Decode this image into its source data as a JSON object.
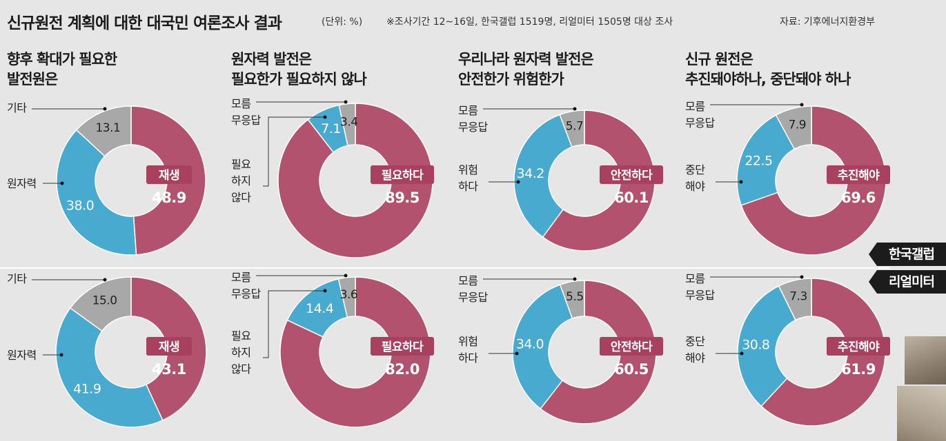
{
  "header": {
    "title": "신규원전 계획에 대한 대국민 여론조사 결과",
    "unit": "(단위: %)",
    "survey_note": "※조사기간 12~16일, 한국갤럽 1519명, 리얼미터 1505명 대상 조사",
    "source": "자료: 기후에너지환경부"
  },
  "questions": [
    {
      "line1": "향후 확대가 필요한",
      "line2": "발전원은"
    },
    {
      "line1": "원자력 발전은",
      "line2": "필요한가 필요하지 않나"
    },
    {
      "line1": "우리나라 원자력 발전은",
      "line2": "안전한가 위험한가"
    },
    {
      "line1": "신규 원전은",
      "line2": "추진돼야하나, 중단돼야 하나"
    }
  ],
  "legend": {
    "gallup": "한국갤럽",
    "realmeter": "리얼미터"
  },
  "colors": {
    "main": "#b3526f",
    "secondary": "#49aacf",
    "other": "#a8a8a8",
    "background": "#e6e6e6"
  },
  "chart_data": [
    {
      "type": "pie",
      "survey": "한국갤럽",
      "question": "향후 확대가 필요한 발전원은",
      "slices": [
        {
          "label": "재생",
          "value": 48.9,
          "value_text": "48.9"
        },
        {
          "label": "원자력",
          "value": 38.0,
          "value_text": "38.0"
        },
        {
          "label": "기타",
          "value": 13.1,
          "value_text": "13.1"
        }
      ]
    },
    {
      "type": "pie",
      "survey": "한국갤럽",
      "question": "원자력 발전은 필요한가 필요하지 않나",
      "slices": [
        {
          "label": "필요하다",
          "value": 89.5,
          "value_text": "89.5"
        },
        {
          "label": "필요 하지 않다",
          "value": 7.1,
          "value_text": "7.1"
        },
        {
          "label": "모름 무응답",
          "value": 3.4,
          "value_text": "3.4"
        }
      ]
    },
    {
      "type": "pie",
      "survey": "한국갤럽",
      "question": "우리나라 원자력 발전은 안전한가 위험한가",
      "slices": [
        {
          "label": "안전하다",
          "value": 60.1,
          "value_text": "60.1"
        },
        {
          "label": "위험 하다",
          "value": 34.2,
          "value_text": "34.2"
        },
        {
          "label": "모름 무응답",
          "value": 5.7,
          "value_text": "5.7"
        }
      ]
    },
    {
      "type": "pie",
      "survey": "한국갤럽",
      "question": "신규 원전은 추진돼야하나, 중단돼야 하나",
      "slices": [
        {
          "label": "추진해야",
          "value": 69.6,
          "value_text": "69.6"
        },
        {
          "label": "중단 해야",
          "value": 22.5,
          "value_text": "22.5"
        },
        {
          "label": "모름 무응답",
          "value": 7.9,
          "value_text": "7.9"
        }
      ]
    },
    {
      "type": "pie",
      "survey": "리얼미터",
      "question": "향후 확대가 필요한 발전원은",
      "slices": [
        {
          "label": "재생",
          "value": 43.1,
          "value_text": "43.1"
        },
        {
          "label": "원자력",
          "value": 41.9,
          "value_text": "41.9"
        },
        {
          "label": "기타",
          "value": 15.0,
          "value_text": "15.0"
        }
      ]
    },
    {
      "type": "pie",
      "survey": "리얼미터",
      "question": "원자력 발전은 필요한가 필요하지 않나",
      "slices": [
        {
          "label": "필요하다",
          "value": 82.0,
          "value_text": "82.0"
        },
        {
          "label": "필요 하지 않다",
          "value": 14.4,
          "value_text": "14.4"
        },
        {
          "label": "모름 무응답",
          "value": 3.6,
          "value_text": "3.6"
        }
      ]
    },
    {
      "type": "pie",
      "survey": "리얼미터",
      "question": "우리나라 원자력 발전은 안전한가 위험한가",
      "slices": [
        {
          "label": "안전하다",
          "value": 60.5,
          "value_text": "60.5"
        },
        {
          "label": "위험 하다",
          "value": 34.0,
          "value_text": "34.0"
        },
        {
          "label": "모름 무응답",
          "value": 5.5,
          "value_text": "5.5"
        }
      ]
    },
    {
      "type": "pie",
      "survey": "리얼미터",
      "question": "신규 원전은 추진돼야하나, 중단돼야 하나",
      "slices": [
        {
          "label": "추진해야",
          "value": 61.9,
          "value_text": "61.9"
        },
        {
          "label": "중단 해야",
          "value": 30.8,
          "value_text": "30.8"
        },
        {
          "label": "모름 무응답",
          "value": 7.3,
          "value_text": "7.3"
        }
      ]
    }
  ]
}
